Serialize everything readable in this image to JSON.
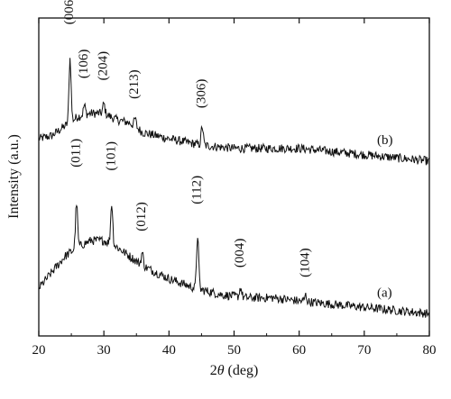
{
  "chart_data": {
    "type": "line",
    "title": "",
    "xlabel_prefix": "2",
    "xlabel_theta": "θ",
    "xlabel_suffix": " (deg)",
    "ylabel": "Intensity (a.u.)",
    "xlim": [
      20,
      80
    ],
    "xticks": [
      "20",
      "30",
      "40",
      "50",
      "60",
      "70",
      "80"
    ],
    "yticks_shown": false,
    "grid": false,
    "legend": "none",
    "series": [
      {
        "name": "(b)",
        "label": "(b)",
        "baseline": [
          [
            20,
            0.62
          ],
          [
            22,
            0.63
          ],
          [
            24,
            0.66
          ],
          [
            26,
            0.69
          ],
          [
            28,
            0.7
          ],
          [
            30,
            0.7
          ],
          [
            32,
            0.68
          ],
          [
            34,
            0.67
          ],
          [
            36,
            0.64
          ],
          [
            40,
            0.62
          ],
          [
            45,
            0.6
          ],
          [
            50,
            0.59
          ],
          [
            55,
            0.59
          ],
          [
            60,
            0.59
          ],
          [
            65,
            0.58
          ],
          [
            70,
            0.57
          ],
          [
            75,
            0.56
          ],
          [
            80,
            0.55
          ]
        ],
        "peaks": [
          {
            "x": 24.8,
            "height": 0.2,
            "label": "(006)"
          },
          {
            "x": 27.0,
            "height": 0.03,
            "label": "(106)"
          },
          {
            "x": 30.0,
            "height": 0.03,
            "label": "(204)"
          },
          {
            "x": 34.8,
            "height": 0.025,
            "label": "(213)"
          },
          {
            "x": 45.1,
            "height": 0.06,
            "label": "(306)"
          }
        ]
      },
      {
        "name": "(a)",
        "label": "(a)",
        "baseline": [
          [
            20,
            0.15
          ],
          [
            22,
            0.2
          ],
          [
            24,
            0.25
          ],
          [
            26,
            0.28
          ],
          [
            28,
            0.3
          ],
          [
            30,
            0.3
          ],
          [
            32,
            0.28
          ],
          [
            34,
            0.25
          ],
          [
            36,
            0.22
          ],
          [
            40,
            0.18
          ],
          [
            44,
            0.15
          ],
          [
            48,
            0.13
          ],
          [
            52,
            0.12
          ],
          [
            56,
            0.12
          ],
          [
            60,
            0.11
          ],
          [
            65,
            0.1
          ],
          [
            70,
            0.09
          ],
          [
            75,
            0.08
          ],
          [
            80,
            0.07
          ]
        ],
        "peaks": [
          {
            "x": 25.8,
            "height": 0.14,
            "label": "(011)"
          },
          {
            "x": 31.2,
            "height": 0.13,
            "label": "(101)"
          },
          {
            "x": 35.9,
            "height": 0.04,
            "label": "(012)"
          },
          {
            "x": 44.4,
            "height": 0.17,
            "label": "(112)"
          },
          {
            "x": 51.0,
            "height": 0.03,
            "label": "(004)"
          },
          {
            "x": 61.0,
            "height": 0.02,
            "label": "(104)"
          }
        ]
      }
    ]
  }
}
